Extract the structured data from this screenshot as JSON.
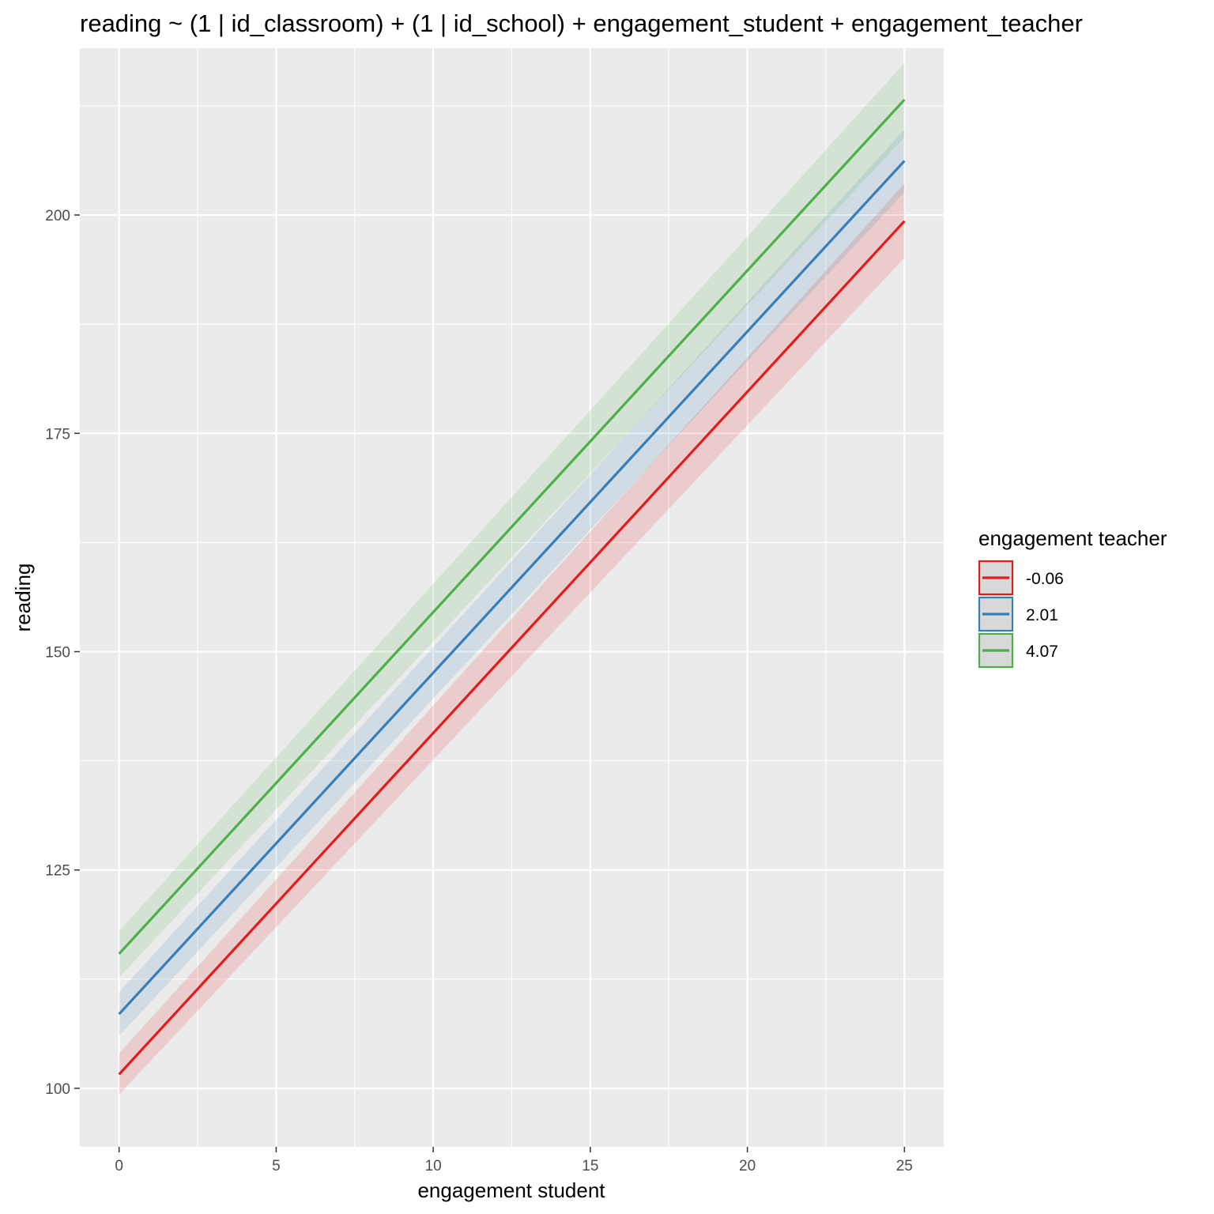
{
  "chart_data": {
    "type": "line",
    "title": "reading ~ (1 | id_classroom) + (1 | id_school) + engagement_student + engagement_teacher",
    "xlabel": "engagement student",
    "ylabel": "reading",
    "xlim": [
      -1.25,
      26.25
    ],
    "ylim": [
      93.3,
      219.1
    ],
    "x_ticks": [
      0,
      5,
      10,
      15,
      20,
      25
    ],
    "x_tick_labels": [
      "0",
      "5",
      "10",
      "15",
      "20",
      "25"
    ],
    "y_ticks": [
      100,
      125,
      150,
      175,
      200
    ],
    "y_tick_labels": [
      "100",
      "125",
      "150",
      "175",
      "200"
    ],
    "x_minor_ticks": [
      2.5,
      7.5,
      12.5,
      17.5,
      22.5
    ],
    "y_minor_ticks": [
      112.5,
      137.5,
      162.5,
      187.5,
      212.5
    ],
    "grid": true,
    "legend": {
      "title": "engagement teacher",
      "position": "right"
    },
    "x": [
      0,
      25
    ],
    "series": [
      {
        "name": "-0.06",
        "color": "#E41A1C",
        "y": [
          101.6,
          199.3
        ],
        "lower": [
          99.3,
          195.1
        ],
        "upper": [
          104.0,
          203.6
        ]
      },
      {
        "name": "2.01",
        "color": "#377EB8",
        "y": [
          108.5,
          206.2
        ],
        "lower": [
          106.0,
          202.6
        ],
        "upper": [
          111.0,
          209.8
        ]
      },
      {
        "name": "4.07",
        "color": "#4DAF4A",
        "y": [
          115.4,
          213.2
        ],
        "lower": [
          112.7,
          208.9
        ],
        "upper": [
          118.0,
          217.4
        ]
      }
    ]
  }
}
